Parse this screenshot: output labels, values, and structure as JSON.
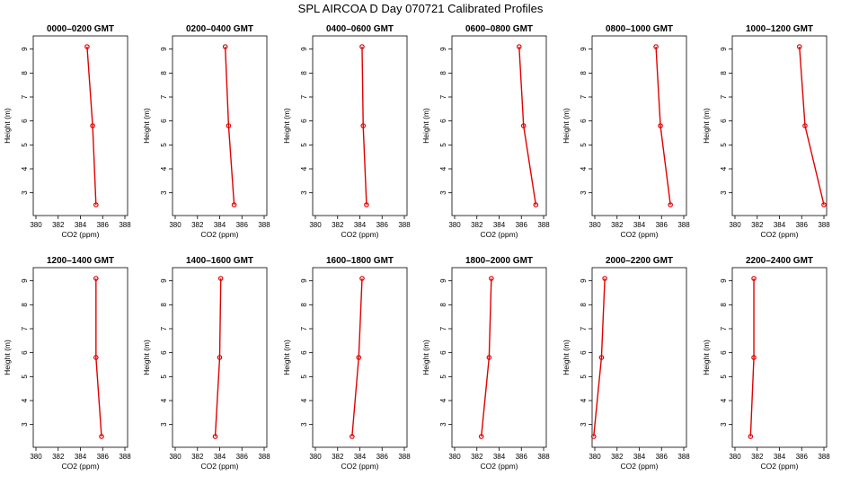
{
  "figure": {
    "title": "SPL AIRCOA D  Day 070721  Calibrated Profiles"
  },
  "colors": {
    "series": "#e00000",
    "axis": "#000000",
    "background": "#ffffff"
  },
  "chart_data": [
    {
      "type": "line",
      "title": "0000–0200 GMT",
      "xlabel": "CO2 (ppm)",
      "ylabel": "Height (m)",
      "xlim": [
        380,
        388
      ],
      "ylim": [
        2.5,
        9.1
      ],
      "xticks": [
        380,
        382,
        384,
        386,
        388
      ],
      "yticks": [
        3,
        4,
        5,
        6,
        7,
        8,
        9
      ],
      "grid": false,
      "x": [
        384.6,
        385.1,
        385.4
      ],
      "y": [
        9.1,
        5.8,
        2.5
      ]
    },
    {
      "type": "line",
      "title": "0200–0400 GMT",
      "xlabel": "CO2 (ppm)",
      "ylabel": "Height (m)",
      "xlim": [
        380,
        388
      ],
      "ylim": [
        2.5,
        9.1
      ],
      "xticks": [
        380,
        382,
        384,
        386,
        388
      ],
      "yticks": [
        3,
        4,
        5,
        6,
        7,
        8,
        9
      ],
      "grid": false,
      "x": [
        384.5,
        384.8,
        385.3
      ],
      "y": [
        9.1,
        5.8,
        2.5
      ]
    },
    {
      "type": "line",
      "title": "0400–0600 GMT",
      "xlabel": "CO2 (ppm)",
      "ylabel": "Height (m)",
      "xlim": [
        380,
        388
      ],
      "ylim": [
        2.5,
        9.1
      ],
      "xticks": [
        380,
        382,
        384,
        386,
        388
      ],
      "yticks": [
        3,
        4,
        5,
        6,
        7,
        8,
        9
      ],
      "grid": false,
      "x": [
        384.2,
        384.3,
        384.6
      ],
      "y": [
        9.1,
        5.8,
        2.5
      ]
    },
    {
      "type": "line",
      "title": "0600–0800 GMT",
      "xlabel": "CO2 (ppm)",
      "ylabel": "Height (m)",
      "xlim": [
        380,
        388
      ],
      "ylim": [
        2.5,
        9.1
      ],
      "xticks": [
        380,
        382,
        384,
        386,
        388
      ],
      "yticks": [
        3,
        4,
        5,
        6,
        7,
        8,
        9
      ],
      "grid": false,
      "x": [
        385.8,
        386.2,
        387.3
      ],
      "y": [
        9.1,
        5.8,
        2.5
      ]
    },
    {
      "type": "line",
      "title": "0800–1000 GMT",
      "xlabel": "CO2 (ppm)",
      "ylabel": "Height (m)",
      "xlim": [
        380,
        388
      ],
      "ylim": [
        2.5,
        9.1
      ],
      "xticks": [
        380,
        382,
        384,
        386,
        388
      ],
      "yticks": [
        3,
        4,
        5,
        6,
        7,
        8,
        9
      ],
      "grid": false,
      "x": [
        385.5,
        385.9,
        386.8
      ],
      "y": [
        9.1,
        5.8,
        2.5
      ]
    },
    {
      "type": "line",
      "title": "1000–1200 GMT",
      "xlabel": "CO2 (ppm)",
      "ylabel": "Height (m)",
      "xlim": [
        380,
        388
      ],
      "ylim": [
        2.5,
        9.1
      ],
      "xticks": [
        380,
        382,
        384,
        386,
        388
      ],
      "yticks": [
        3,
        4,
        5,
        6,
        7,
        8,
        9
      ],
      "grid": false,
      "x": [
        385.8,
        386.3,
        388.0
      ],
      "y": [
        9.1,
        5.8,
        2.5
      ]
    },
    {
      "type": "line",
      "title": "1200–1400 GMT",
      "xlabel": "CO2 (ppm)",
      "ylabel": "Height (m)",
      "xlim": [
        380,
        388
      ],
      "ylim": [
        2.5,
        9.1
      ],
      "xticks": [
        380,
        382,
        384,
        386,
        388
      ],
      "yticks": [
        3,
        4,
        5,
        6,
        7,
        8,
        9
      ],
      "grid": false,
      "x": [
        385.4,
        385.4,
        385.9
      ],
      "y": [
        9.1,
        5.8,
        2.5
      ]
    },
    {
      "type": "line",
      "title": "1400–1600 GMT",
      "xlabel": "CO2 (ppm)",
      "ylabel": "Height (m)",
      "xlim": [
        380,
        388
      ],
      "ylim": [
        2.5,
        9.1
      ],
      "xticks": [
        380,
        382,
        384,
        386,
        388
      ],
      "yticks": [
        3,
        4,
        5,
        6,
        7,
        8,
        9
      ],
      "grid": false,
      "x": [
        384.1,
        384.0,
        383.6
      ],
      "y": [
        9.1,
        5.8,
        2.5
      ]
    },
    {
      "type": "line",
      "title": "1600–1800 GMT",
      "xlabel": "CO2 (ppm)",
      "ylabel": "Height (m)",
      "xlim": [
        380,
        388
      ],
      "ylim": [
        2.5,
        9.1
      ],
      "xticks": [
        380,
        382,
        384,
        386,
        388
      ],
      "yticks": [
        3,
        4,
        5,
        6,
        7,
        8,
        9
      ],
      "grid": false,
      "x": [
        384.2,
        383.9,
        383.3
      ],
      "y": [
        9.1,
        5.8,
        2.5
      ]
    },
    {
      "type": "line",
      "title": "1800–2000 GMT",
      "xlabel": "CO2 (ppm)",
      "ylabel": "Height (m)",
      "xlim": [
        380,
        388
      ],
      "ylim": [
        2.5,
        9.1
      ],
      "xticks": [
        380,
        382,
        384,
        386,
        388
      ],
      "yticks": [
        3,
        4,
        5,
        6,
        7,
        8,
        9
      ],
      "grid": false,
      "x": [
        383.3,
        383.1,
        382.4
      ],
      "y": [
        9.1,
        5.8,
        2.5
      ]
    },
    {
      "type": "line",
      "title": "2000–2200 GMT",
      "xlabel": "CO2 (ppm)",
      "ylabel": "Height (m)",
      "xlim": [
        380,
        388
      ],
      "ylim": [
        2.5,
        9.1
      ],
      "xticks": [
        380,
        382,
        384,
        386,
        388
      ],
      "yticks": [
        3,
        4,
        5,
        6,
        7,
        8,
        9
      ],
      "grid": false,
      "x": [
        380.9,
        380.6,
        379.9
      ],
      "y": [
        9.1,
        5.8,
        2.5
      ]
    },
    {
      "type": "line",
      "title": "2200–2400 GMT",
      "xlabel": "CO2 (ppm)",
      "ylabel": "Height (m)",
      "xlim": [
        380,
        388
      ],
      "ylim": [
        2.5,
        9.1
      ],
      "xticks": [
        380,
        382,
        384,
        386,
        388
      ],
      "yticks": [
        3,
        4,
        5,
        6,
        7,
        8,
        9
      ],
      "grid": false,
      "x": [
        381.7,
        381.7,
        381.4
      ],
      "y": [
        9.1,
        5.8,
        2.5
      ]
    }
  ]
}
